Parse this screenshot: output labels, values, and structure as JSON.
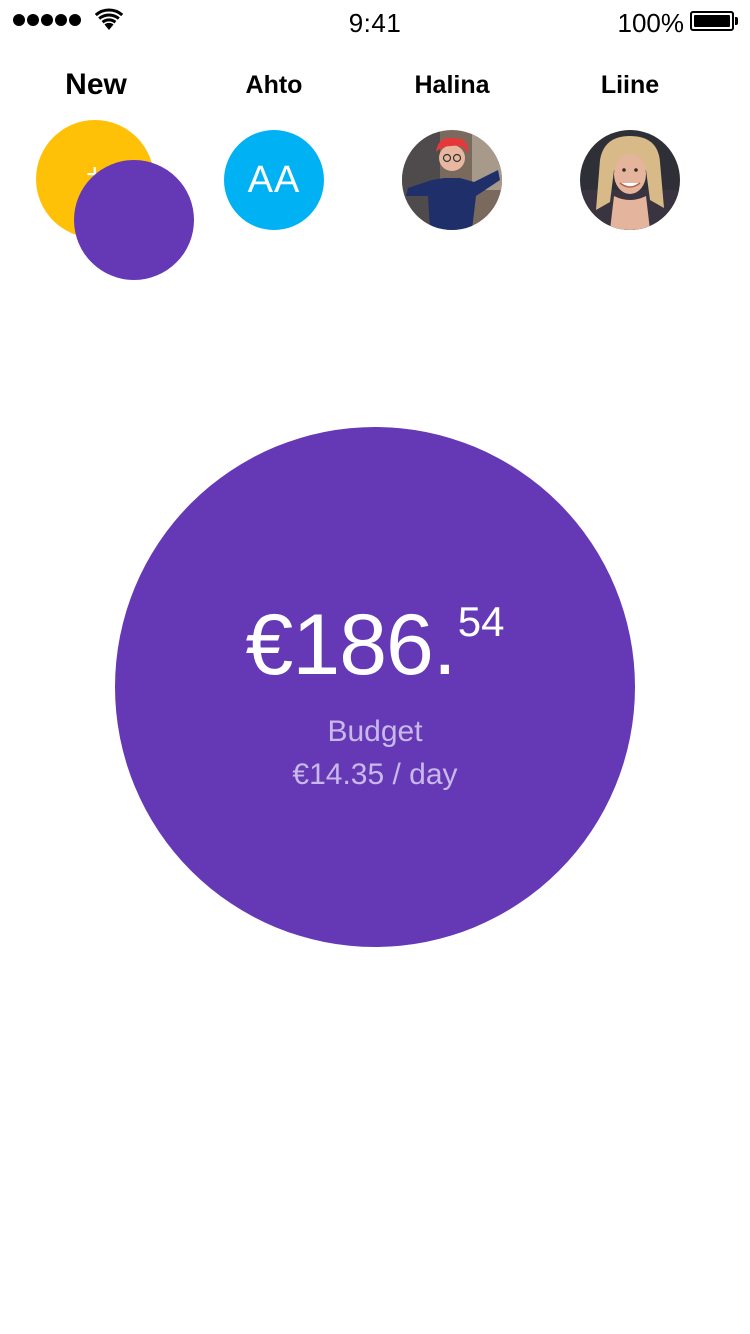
{
  "status_bar": {
    "time": "9:41",
    "battery_percent": "100%",
    "signal_bars": 5,
    "wifi_icon": "wifi-icon",
    "battery_icon": "battery-icon"
  },
  "contacts": [
    {
      "label": "New",
      "avatar": "add-new-avatar",
      "color": "#ffc107",
      "overlay_color": "#6539b5",
      "symbol": "+"
    },
    {
      "label": "Ahto",
      "avatar": "initials-avatar",
      "initials": "AA",
      "color": "#00b2f4"
    },
    {
      "label": "Halina",
      "avatar": "photo-avatar"
    },
    {
      "label": "Liine",
      "avatar": "photo-avatar"
    }
  ],
  "budget": {
    "amount_main": "€186.",
    "amount_cents": "54",
    "label": "Budget",
    "daily": "€14.35 / day",
    "circle_color": "#6539b5"
  }
}
